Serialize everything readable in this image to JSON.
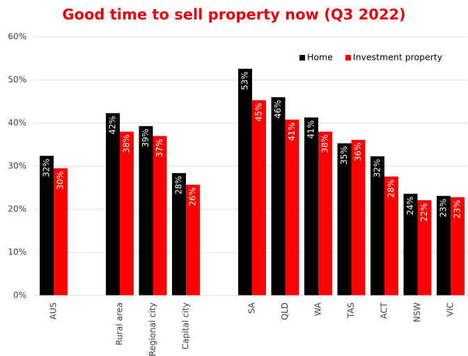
{
  "chart_data": {
    "type": "bar",
    "title": "Good time to sell property now (Q3 2022)",
    "categories": [
      "AUS",
      null,
      "Rural area",
      "Regional city",
      "Capital city",
      null,
      "SA",
      "QLD",
      "WA",
      "TAS",
      "ACT",
      "NSW",
      "VIC"
    ],
    "series": [
      {
        "name": "Home",
        "color": "#000000",
        "values": [
          32.4,
          null,
          42.3,
          39.3,
          28.4,
          null,
          52.6,
          46.0,
          41.3,
          35.3,
          32.3,
          23.6,
          23.1
        ],
        "value_labels": [
          "32%",
          null,
          "42%",
          "39%",
          "28%",
          null,
          "53%",
          "46%",
          "41%",
          "35%",
          "32%",
          "24%",
          "23%"
        ]
      },
      {
        "name": "Investment property",
        "color": "#ff0000",
        "values": [
          29.5,
          null,
          38.0,
          37.0,
          25.7,
          null,
          45.3,
          40.8,
          38.0,
          36.1,
          27.6,
          22.1,
          22.8
        ],
        "value_labels": [
          "30%",
          null,
          "38%",
          "37%",
          "26%",
          null,
          "45%",
          "41%",
          "38%",
          "36%",
          "28%",
          "22%",
          "23%"
        ]
      }
    ],
    "ylim": [
      0,
      60
    ],
    "yticks": [
      {
        "value": 0,
        "label": "0%"
      },
      {
        "value": 10,
        "label": "10%"
      },
      {
        "value": 20,
        "label": "20%"
      },
      {
        "value": 30,
        "label": "30%"
      },
      {
        "value": 40,
        "label": "40%"
      },
      {
        "value": 50,
        "label": "50%"
      },
      {
        "value": 60,
        "label": "60%"
      }
    ],
    "grid": true,
    "legend": "top-right"
  }
}
